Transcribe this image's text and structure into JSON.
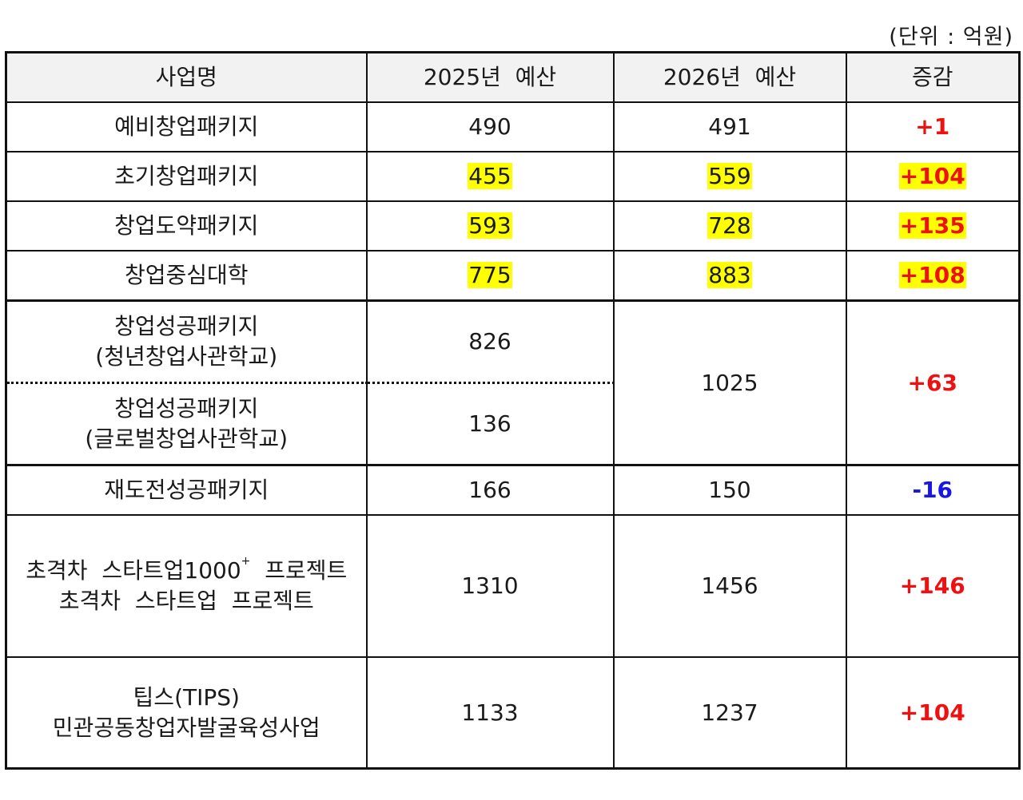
{
  "unit_label": "(단위 : 억원)",
  "headers": {
    "name": "사업명",
    "budget_2025": "2025년  예산",
    "budget_2026": "2026년  예산",
    "change": "증감"
  },
  "rows": {
    "r1": {
      "name": "예비창업패키지",
      "b2025": "490",
      "b2026": "491",
      "change": "+1"
    },
    "r2": {
      "name": "초기창업패키지",
      "b2025": "455",
      "b2026": "559",
      "change": "+104"
    },
    "r3": {
      "name": "창업도약패키지",
      "b2025": "593",
      "b2026": "728",
      "change": "+135"
    },
    "r4": {
      "name": "창업중심대학",
      "b2025": "775",
      "b2026": "883",
      "change": "+108"
    },
    "r5a": {
      "name_line1": "창업성공패키지",
      "name_line2": "(청년창업사관학교)",
      "b2025": "826"
    },
    "r5b": {
      "name_line1": "창업성공패키지",
      "name_line2": "(글로벌창업사관학교)",
      "b2025": "136"
    },
    "r5": {
      "b2026": "1025",
      "change": "+63"
    },
    "r6": {
      "name": "재도전성공패키지",
      "b2025": "166",
      "b2026": "150",
      "change": "-16"
    },
    "r7": {
      "name_line1_a": "초격차  스타트업1000",
      "name_line1_sup": "+",
      "name_line1_b": "  프로젝트",
      "name_line2": "초격차  스타트업  프로젝트",
      "b2025": "1310",
      "b2026": "1456",
      "change": "+146"
    },
    "r8": {
      "name_line1": "팁스(TIPS)",
      "name_line2": "민관공동창업자발굴육성사업",
      "b2025": "1133",
      "b2026": "1237",
      "change": "+104"
    }
  },
  "colors": {
    "increase": "#ee1111",
    "decrease": "#1818e0",
    "highlight": "#ffff00",
    "header_bg": "#f2f2f2"
  }
}
